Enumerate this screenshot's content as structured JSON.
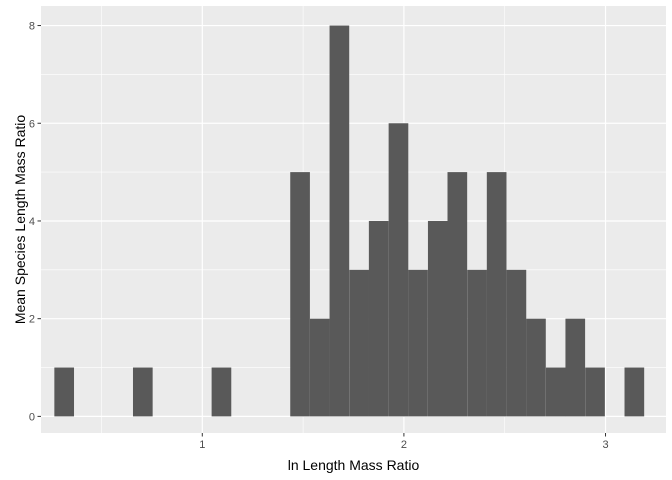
{
  "chart_data": {
    "type": "bar",
    "title": "",
    "xlabel": "ln Length Mass Ratio",
    "ylabel": "Mean Species Length Mass Ratio",
    "xlim": [
      0.2,
      3.3
    ],
    "ylim": [
      -0.34,
      8.4
    ],
    "x_ticks": [
      1,
      2,
      3
    ],
    "x_tick_labels": [
      "1",
      "2",
      "3"
    ],
    "y_ticks": [
      0,
      2,
      4,
      6,
      8
    ],
    "y_tick_labels": [
      "0",
      "2",
      "4",
      "6",
      "8"
    ],
    "grid": true,
    "bin_width": 0.0975,
    "bins_x_center": [
      0.315,
      0.705,
      1.095,
      1.485,
      1.583,
      1.68,
      1.778,
      1.875,
      1.973,
      2.07,
      2.168,
      2.265,
      2.363,
      2.46,
      2.558,
      2.655,
      2.753,
      2.85,
      2.948,
      3.143
    ],
    "values": [
      1,
      1,
      1,
      5,
      2,
      8,
      3,
      4,
      6,
      3,
      4,
      5,
      3,
      5,
      3,
      2,
      1,
      2,
      1,
      1
    ],
    "colors": {
      "panel": "#EBEBEB",
      "grid_major": "#FFFFFF",
      "bar": "#595959"
    }
  }
}
